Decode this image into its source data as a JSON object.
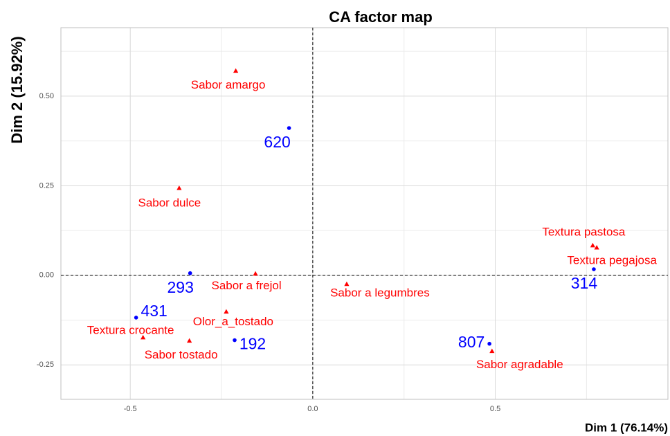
{
  "chart_data": {
    "type": "scatter",
    "title": "CA factor map",
    "xlabel": "Dim 1 (76.14%)",
    "ylabel": "Dim 2 (15.92%)",
    "xlim": [
      -0.69,
      0.973
    ],
    "ylim": [
      -0.346,
      0.691
    ],
    "xticks": [
      -0.5,
      {
        "value": 0,
        "label": "0.0"
      },
      0.5
    ],
    "yticks": [
      -0.25,
      {
        "value": 0,
        "label": "0.00"
      },
      0.25,
      {
        "value": 0.5,
        "label": "0.50"
      }
    ],
    "xminor": [
      -0.25,
      0.25,
      0.75
    ],
    "yminor": [
      -0.125,
      0.125,
      0.375,
      0.625
    ],
    "grid": true,
    "series": [
      {
        "color": "#0000ff",
        "marker": "circle",
        "labels": [
          "620",
          "293",
          "431",
          "192",
          "807",
          "314"
        ],
        "x": [
          -0.065,
          -0.336,
          -0.484,
          -0.214,
          0.484,
          0.77
        ],
        "y": [
          0.411,
          0.006,
          -0.118,
          -0.181,
          -0.191,
          0.017
        ]
      },
      {
        "color": "#ff0000",
        "marker": "triangle",
        "labels": [
          "Sabor amargo",
          "Sabor dulce",
          "Sabor a frejol",
          "Sabor a legumbres",
          "Olor_a_tostado",
          "Textura crocante",
          "Sabor tostado",
          "Sabor agradable",
          "Textura pastosa",
          "Textura pegajosa"
        ],
        "x": [
          -0.211,
          -0.366,
          -0.157,
          0.093,
          -0.237,
          -0.465,
          -0.338,
          0.491,
          0.767,
          0.778
        ],
        "y": [
          0.57,
          0.243,
          0.004,
          -0.025,
          -0.102,
          -0.174,
          -0.183,
          -0.212,
          0.083,
          0.077
        ]
      }
    ]
  }
}
